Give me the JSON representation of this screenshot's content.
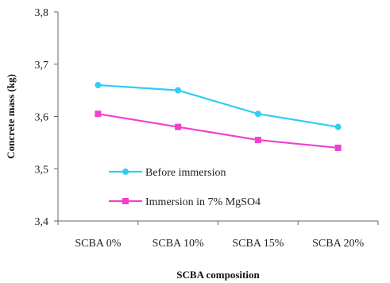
{
  "chart_data": {
    "type": "line",
    "title": "",
    "xlabel": "SCBA composition",
    "ylabel": "Concrete mass (kg)",
    "categories": [
      "SCBA 0%",
      "SCBA 10%",
      "SCBA 15%",
      "SCBA 20%"
    ],
    "ylim": [
      3.4,
      3.8
    ],
    "yticks": [
      "3,4",
      "3,5",
      "3,6",
      "3,7",
      "3,8"
    ],
    "grid": false,
    "legend_position": "bottom-left",
    "series": [
      {
        "name": "Before immersion",
        "values": [
          3.66,
          3.65,
          3.605,
          3.58
        ],
        "color": "#33ccf5",
        "marker": "circle"
      },
      {
        "name": "Immersion in 7% MgSO4",
        "values": [
          3.605,
          3.58,
          3.555,
          3.54
        ],
        "color": "#f040d0",
        "marker": "square"
      }
    ]
  }
}
